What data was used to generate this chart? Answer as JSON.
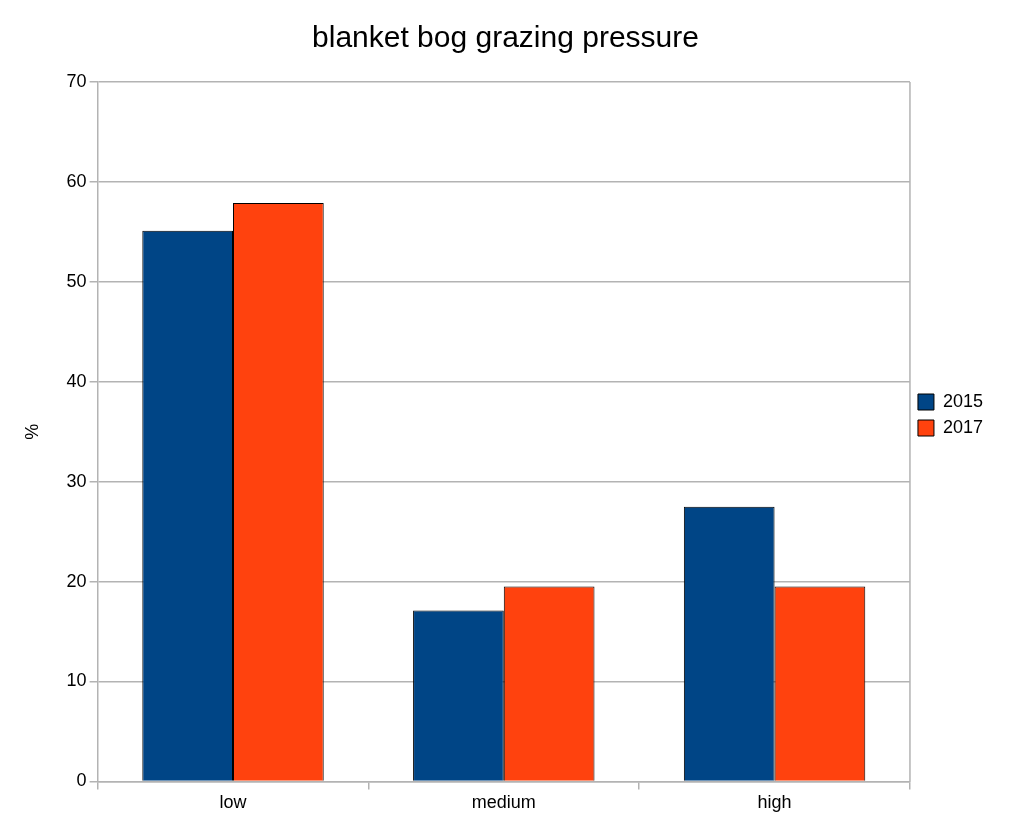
{
  "chart_data": {
    "type": "bar",
    "title": "blanket bog grazing pressure",
    "ylabel": "%",
    "categories": [
      "low",
      "medium",
      "high"
    ],
    "series": [
      {
        "name": "2015",
        "color": "#004586",
        "values": [
          55.1,
          17.1,
          27.5
        ]
      },
      {
        "name": "2017",
        "color": "#ff420e",
        "values": [
          57.9,
          19.5,
          19.5
        ]
      }
    ],
    "ylim": [
      0,
      70
    ],
    "yticks": [
      0,
      10,
      20,
      30,
      40,
      50,
      60,
      70
    ],
    "grid": "y",
    "legend": "right"
  }
}
